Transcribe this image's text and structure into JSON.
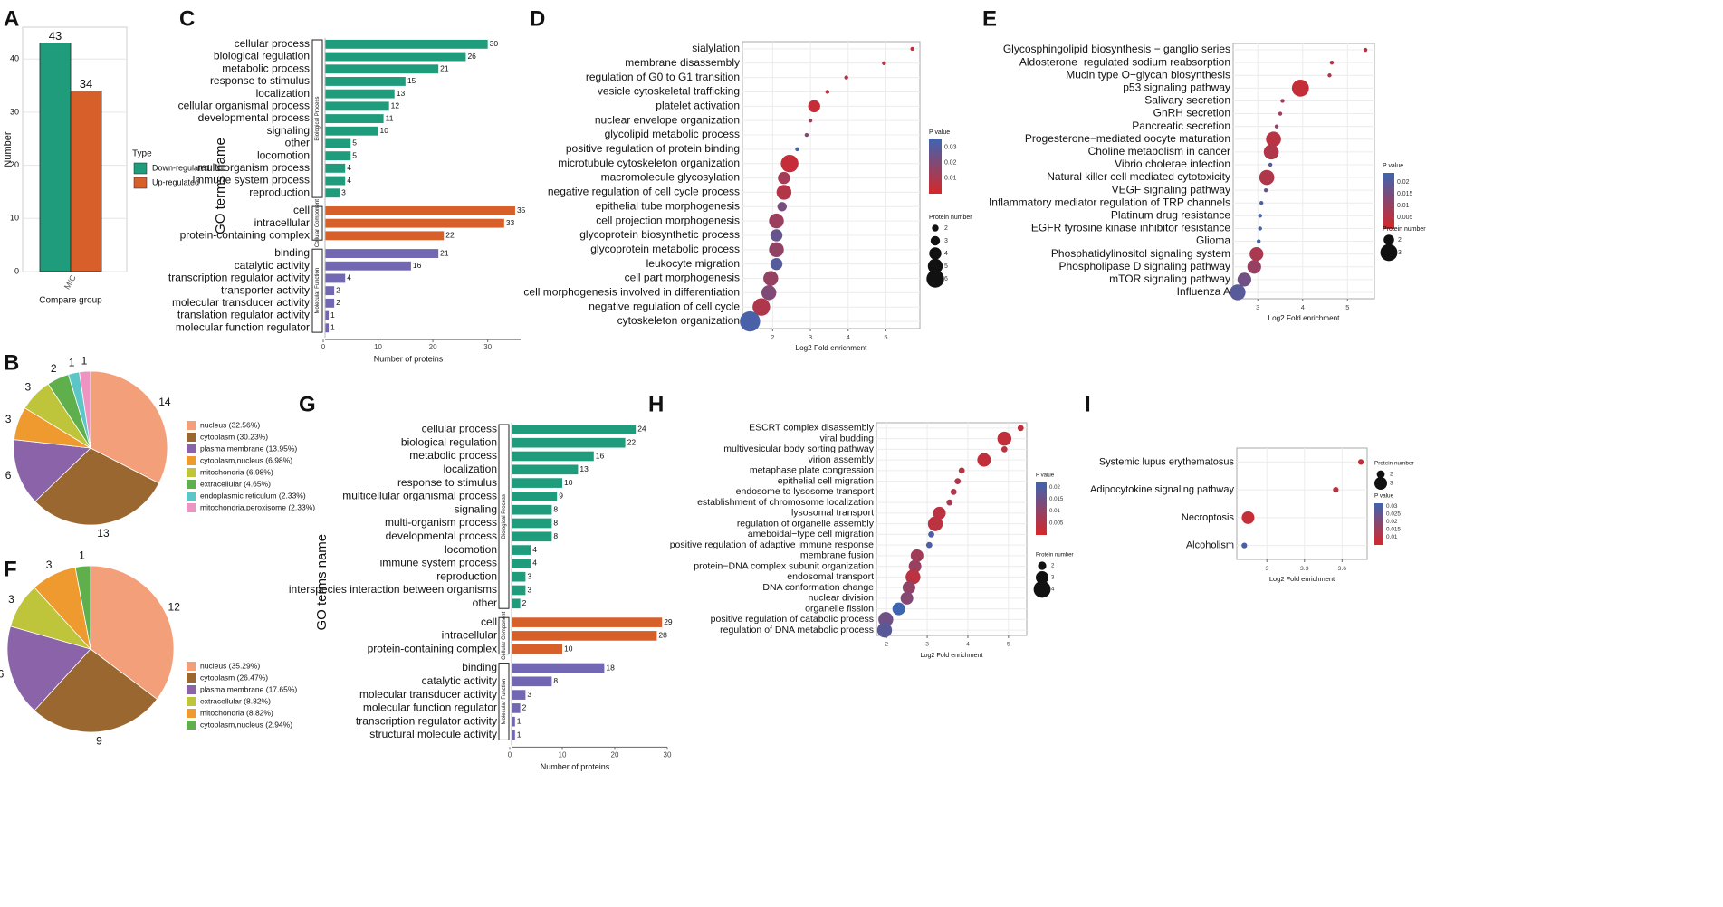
{
  "colors": {
    "green": "#1E9C7C",
    "orange": "#D7602A",
    "purple": "#7167B3",
    "p_high": "#D62728",
    "p_low": "#3F64B0"
  },
  "chart_data": [
    {
      "id": "A",
      "type": "bar",
      "title": "",
      "xlabel": "Compare group",
      "ylabel": "Number",
      "categories": [
        "M/C"
      ],
      "series": [
        {
          "name": "Down-regulated",
          "values": [
            43
          ],
          "color": "#1E9C7C"
        },
        {
          "name": "Up-regulated",
          "values": [
            34
          ],
          "color": "#D7602A"
        }
      ],
      "ylim": [
        0,
        46
      ],
      "yticks": [
        0,
        10,
        20,
        30,
        40
      ],
      "legend_title": "Type",
      "legend_position": "right"
    },
    {
      "id": "B",
      "type": "pie",
      "slices": [
        {
          "label": "nucleus (32.56%)",
          "value": 14,
          "color": "#F3A07A"
        },
        {
          "label": "cytoplasm (30.23%)",
          "value": 13,
          "color": "#99672F"
        },
        {
          "label": "plasma membrane (13.95%)",
          "value": 6,
          "color": "#8B63A8"
        },
        {
          "label": "cytoplasm,nucleus (6.98%)",
          "value": 3,
          "color": "#EE9A2E"
        },
        {
          "label": "mitochondria (6.98%)",
          "value": 3,
          "color": "#BFC53B"
        },
        {
          "label": "extracellular (4.65%)",
          "value": 2,
          "color": "#5FB04D"
        },
        {
          "label": "endoplasmic reticulum (2.33%)",
          "value": 1,
          "color": "#5CC5C8"
        },
        {
          "label": "mitochondria,peroxisome (2.33%)",
          "value": 1,
          "color": "#EE94C2"
        }
      ]
    },
    {
      "id": "F",
      "type": "pie",
      "slices": [
        {
          "label": "nucleus (35.29%)",
          "value": 12,
          "color": "#F3A07A"
        },
        {
          "label": "cytoplasm (26.47%)",
          "value": 9,
          "color": "#99672F"
        },
        {
          "label": "plasma membrane (17.65%)",
          "value": 6,
          "color": "#8B63A8"
        },
        {
          "label": "extracellular (8.82%)",
          "value": 3,
          "color": "#BFC53B"
        },
        {
          "label": "mitochondria (8.82%)",
          "value": 3,
          "color": "#EE9A2E"
        },
        {
          "label": "cytoplasm,nucleus (2.94%)",
          "value": 1,
          "color": "#5FB04D"
        }
      ]
    },
    {
      "id": "C",
      "type": "bar",
      "orientation": "horizontal",
      "xlabel": "Number of proteins",
      "ylabel": "GO terms name",
      "xlim": [
        0,
        36
      ],
      "xticks": [
        0,
        10,
        20,
        30
      ],
      "groups": [
        {
          "name": "Biological Process",
          "color": "#1E9C7C",
          "terms": [
            {
              "label": "cellular process",
              "value": 30
            },
            {
              "label": "biological regulation",
              "value": 26
            },
            {
              "label": "metabolic process",
              "value": 21
            },
            {
              "label": "response to stimulus",
              "value": 15
            },
            {
              "label": "localization",
              "value": 13
            },
            {
              "label": "cellular organismal process",
              "value": 12
            },
            {
              "label": "developmental process",
              "value": 11
            },
            {
              "label": "signaling",
              "value": 10
            },
            {
              "label": "other",
              "value": 5
            },
            {
              "label": "locomotion",
              "value": 5
            },
            {
              "label": "multi-organism process",
              "value": 4
            },
            {
              "label": "immune system process",
              "value": 4
            },
            {
              "label": "reproduction",
              "value": 3
            }
          ]
        },
        {
          "name": "Cellular Component",
          "color": "#D7602A",
          "terms": [
            {
              "label": "cell",
              "value": 35
            },
            {
              "label": "intracellular",
              "value": 33
            },
            {
              "label": "protein-containing complex",
              "value": 22
            }
          ]
        },
        {
          "name": "Molecular Function",
          "color": "#7167B3",
          "terms": [
            {
              "label": "binding",
              "value": 21
            },
            {
              "label": "catalytic activity",
              "value": 16
            },
            {
              "label": "transcription regulator activity",
              "value": 4
            },
            {
              "label": "transporter activity",
              "value": 2
            },
            {
              "label": "molecular transducer activity",
              "value": 2
            },
            {
              "label": "translation regulator activity",
              "value": 1
            },
            {
              "label": "molecular function regulator",
              "value": 1
            }
          ]
        }
      ]
    },
    {
      "id": "G",
      "type": "bar",
      "orientation": "horizontal",
      "xlabel": "Number of proteins",
      "ylabel": "GO terms name",
      "xlim": [
        0,
        30
      ],
      "xticks": [
        0,
        10,
        20,
        30
      ],
      "groups": [
        {
          "name": "Biological Process",
          "color": "#1E9C7C",
          "terms": [
            {
              "label": "cellular process",
              "value": 24
            },
            {
              "label": "biological regulation",
              "value": 22
            },
            {
              "label": "metabolic process",
              "value": 16
            },
            {
              "label": "localization",
              "value": 13
            },
            {
              "label": "response to stimulus",
              "value": 10
            },
            {
              "label": "multicellular organismal process",
              "value": 9
            },
            {
              "label": "signaling",
              "value": 8
            },
            {
              "label": "multi-organism process",
              "value": 8
            },
            {
              "label": "developmental process",
              "value": 8
            },
            {
              "label": "locomotion",
              "value": 4
            },
            {
              "label": "immune system process",
              "value": 4
            },
            {
              "label": "reproduction",
              "value": 3
            },
            {
              "label": "interspecies interaction between organisms",
              "value": 3
            },
            {
              "label": "other",
              "value": 2
            }
          ]
        },
        {
          "name": "Cellular Component",
          "color": "#D7602A",
          "terms": [
            {
              "label": "cell",
              "value": 29
            },
            {
              "label": "intracellular",
              "value": 28
            },
            {
              "label": "protein-containing complex",
              "value": 10
            }
          ]
        },
        {
          "name": "Molecular Function",
          "color": "#7167B3",
          "terms": [
            {
              "label": "binding",
              "value": 18
            },
            {
              "label": "catalytic activity",
              "value": 8
            },
            {
              "label": "molecular transducer activity",
              "value": 3
            },
            {
              "label": "molecular function regulator",
              "value": 2
            },
            {
              "label": "transcription regulator activity",
              "value": 1
            },
            {
              "label": "structural molecule activity",
              "value": 1
            }
          ]
        }
      ]
    },
    {
      "id": "D",
      "type": "scatter",
      "subtype": "bubble",
      "xlabel": "Log2 Fold enrichment",
      "xlim": [
        1.2,
        5.9
      ],
      "xticks": [
        2,
        3,
        4,
        5
      ],
      "color_legend": {
        "title": "P value",
        "min": 0.0,
        "max": 0.035,
        "ticks": [
          0.01,
          0.02,
          0.03
        ]
      },
      "size_legend": {
        "title": "Protein number",
        "values": [
          2,
          3,
          4,
          5,
          6
        ]
      },
      "points": [
        {
          "term": "sialylation",
          "x": 5.7,
          "p": 0.005,
          "n": 1
        },
        {
          "term": "membrane disassembly",
          "x": 4.95,
          "p": 0.006,
          "n": 1
        },
        {
          "term": "regulation of G0 to G1 transition",
          "x": 3.95,
          "p": 0.008,
          "n": 1
        },
        {
          "term": "vesicle cytoskeletal trafficking",
          "x": 3.45,
          "p": 0.008,
          "n": 1
        },
        {
          "term": "platelet activation",
          "x": 3.1,
          "p": 0.004,
          "n": 4
        },
        {
          "term": "nuclear envelope organization",
          "x": 3.0,
          "p": 0.015,
          "n": 1
        },
        {
          "term": "glycolipid metabolic process",
          "x": 2.9,
          "p": 0.02,
          "n": 1
        },
        {
          "term": "positive regulation of protein binding",
          "x": 2.65,
          "p": 0.034,
          "n": 1
        },
        {
          "term": "microtubule cytoskeleton organization",
          "x": 2.45,
          "p": 0.004,
          "n": 6
        },
        {
          "term": "macromolecule glycosylation",
          "x": 2.3,
          "p": 0.012,
          "n": 4
        },
        {
          "term": "negative regulation of cell cycle process",
          "x": 2.3,
          "p": 0.008,
          "n": 5
        },
        {
          "term": "epithelial tube morphogenesis",
          "x": 2.25,
          "p": 0.022,
          "n": 3
        },
        {
          "term": "cell projection morphogenesis",
          "x": 2.1,
          "p": 0.014,
          "n": 5
        },
        {
          "term": "glycoprotein biosynthetic process",
          "x": 2.1,
          "p": 0.026,
          "n": 4
        },
        {
          "term": "glycoprotein metabolic process",
          "x": 2.1,
          "p": 0.016,
          "n": 5
        },
        {
          "term": "leukocyte migration",
          "x": 2.1,
          "p": 0.03,
          "n": 4
        },
        {
          "term": "cell part morphogenesis",
          "x": 1.95,
          "p": 0.015,
          "n": 5
        },
        {
          "term": "cell morphogenesis involved in differentiation",
          "x": 1.9,
          "p": 0.02,
          "n": 5
        },
        {
          "term": "negative regulation of cell cycle",
          "x": 1.7,
          "p": 0.009,
          "n": 6
        },
        {
          "term": "cytoskeleton organization",
          "x": 1.4,
          "p": 0.033,
          "n": 7
        }
      ]
    },
    {
      "id": "E",
      "type": "scatter",
      "subtype": "bubble",
      "xlabel": "Log2 Fold enrichment",
      "xlim": [
        2.45,
        5.6
      ],
      "xticks": [
        3,
        4,
        5
      ],
      "color_legend": {
        "title": "P value",
        "min": 0.0,
        "max": 0.024,
        "ticks": [
          0.005,
          0.01,
          0.015,
          0.02
        ]
      },
      "size_legend": {
        "title": "Protein number",
        "values": [
          2,
          3
        ]
      },
      "points": [
        {
          "term": "Glycosphingolipid biosynthesis − ganglio series",
          "x": 5.4,
          "p": 0.004,
          "n": 1
        },
        {
          "term": "Aldosterone−regulated sodium reabsorption",
          "x": 4.65,
          "p": 0.005,
          "n": 1
        },
        {
          "term": "Mucin type O−glycan biosynthesis",
          "x": 4.6,
          "p": 0.006,
          "n": 1
        },
        {
          "term": "p53 signaling pathway",
          "x": 3.95,
          "p": 0.003,
          "n": 3
        },
        {
          "term": "Salivary secretion",
          "x": 3.55,
          "p": 0.008,
          "n": 1
        },
        {
          "term": "GnRH secretion",
          "x": 3.5,
          "p": 0.009,
          "n": 1
        },
        {
          "term": "Pancreatic secretion",
          "x": 3.42,
          "p": 0.012,
          "n": 1
        },
        {
          "term": "Progesterone−mediated oocyte maturation",
          "x": 3.35,
          "p": 0.005,
          "n": 2.7
        },
        {
          "term": "Choline metabolism in cancer",
          "x": 3.3,
          "p": 0.006,
          "n": 2.7
        },
        {
          "term": "Vibrio cholerae infection",
          "x": 3.28,
          "p": 0.021,
          "n": 1
        },
        {
          "term": "Natural killer cell mediated cytotoxicity",
          "x": 3.2,
          "p": 0.006,
          "n": 2.7
        },
        {
          "term": "VEGF signaling pathway",
          "x": 3.18,
          "p": 0.018,
          "n": 1
        },
        {
          "term": "Inflammatory mediator regulation of TRP channels",
          "x": 3.08,
          "p": 0.022,
          "n": 1
        },
        {
          "term": "Platinum drug resistance",
          "x": 3.05,
          "p": 0.023,
          "n": 1
        },
        {
          "term": "EGFR tyrosine kinase inhibitor resistance",
          "x": 3.05,
          "p": 0.023,
          "n": 1
        },
        {
          "term": "Glioma",
          "x": 3.02,
          "p": 0.024,
          "n": 1
        },
        {
          "term": "Phosphatidylinositol signaling system",
          "x": 2.97,
          "p": 0.007,
          "n": 2.5
        },
        {
          "term": "Phospholipase D signaling pathway",
          "x": 2.92,
          "p": 0.01,
          "n": 2.5
        },
        {
          "term": "mTOR signaling pathway",
          "x": 2.7,
          "p": 0.016,
          "n": 2.5
        },
        {
          "term": "Influenza A",
          "x": 2.55,
          "p": 0.02,
          "n": 2.8
        }
      ]
    },
    {
      "id": "H",
      "type": "scatter",
      "subtype": "bubble",
      "xlabel": "Log2 Fold enrichment",
      "xlim": [
        1.75,
        5.45
      ],
      "xticks": [
        2,
        3,
        4,
        5
      ],
      "color_legend": {
        "title": "P value",
        "min": 0.0,
        "max": 0.022,
        "ticks": [
          0.005,
          0.01,
          0.015,
          0.02
        ]
      },
      "size_legend": {
        "title": "Protein number",
        "values": [
          2,
          3,
          4
        ]
      },
      "points": [
        {
          "term": "ESCRT complex disassembly",
          "x": 5.3,
          "p": 0.003,
          "n": 1.5
        },
        {
          "term": "viral budding",
          "x": 4.9,
          "p": 0.003,
          "n": 3.3
        },
        {
          "term": "multivesicular body sorting pathway",
          "x": 4.9,
          "p": 0.004,
          "n": 1.5
        },
        {
          "term": "virion assembly",
          "x": 4.4,
          "p": 0.003,
          "n": 3.2
        },
        {
          "term": "metaphase plate congression",
          "x": 3.85,
          "p": 0.005,
          "n": 1.5
        },
        {
          "term": "epithelial cell migration",
          "x": 3.75,
          "p": 0.006,
          "n": 1.5
        },
        {
          "term": "endosome to lysosome transport",
          "x": 3.65,
          "p": 0.006,
          "n": 1.5
        },
        {
          "term": "establishment of chromosome localization",
          "x": 3.55,
          "p": 0.007,
          "n": 1.5
        },
        {
          "term": "lysosomal transport",
          "x": 3.3,
          "p": 0.004,
          "n": 3
        },
        {
          "term": "regulation of organelle assembly",
          "x": 3.2,
          "p": 0.004,
          "n": 3.5
        },
        {
          "term": "ameboidal−type cell migration",
          "x": 3.1,
          "p": 0.02,
          "n": 1.5
        },
        {
          "term": "positive regulation of adaptive immune response",
          "x": 3.05,
          "p": 0.02,
          "n": 1.5
        },
        {
          "term": "membrane fusion",
          "x": 2.75,
          "p": 0.008,
          "n": 3
        },
        {
          "term": "protein−DNA complex subunit organization",
          "x": 2.7,
          "p": 0.009,
          "n": 3
        },
        {
          "term": "endosomal transport",
          "x": 2.65,
          "p": 0.004,
          "n": 3.5
        },
        {
          "term": "DNA conformation change",
          "x": 2.55,
          "p": 0.01,
          "n": 3
        },
        {
          "term": "nuclear division",
          "x": 2.5,
          "p": 0.012,
          "n": 3
        },
        {
          "term": "organelle fission",
          "x": 2.3,
          "p": 0.022,
          "n": 3
        },
        {
          "term": "positive regulation of catabolic process",
          "x": 1.98,
          "p": 0.015,
          "n": 3.5
        },
        {
          "term": "regulation of DNA metabolic process",
          "x": 1.95,
          "p": 0.018,
          "n": 3.5
        }
      ]
    },
    {
      "id": "I",
      "type": "scatter",
      "subtype": "bubble",
      "xlabel": "Log2 Fold enrichment",
      "xlim": [
        2.76,
        3.8
      ],
      "xticks": [
        3.0,
        3.3,
        3.6
      ],
      "color_legend": {
        "title": "P value",
        "min": 0.005,
        "max": 0.032,
        "ticks": [
          0.01,
          0.015,
          0.02,
          0.025,
          0.03
        ]
      },
      "size_legend": {
        "title": "Protein number",
        "values": [
          2,
          3
        ]
      },
      "points": [
        {
          "term": "Systemic lupus erythematosus",
          "x": 3.75,
          "p": 0.008,
          "n": 1.5
        },
        {
          "term": "Adipocytokine signaling pathway",
          "x": 3.55,
          "p": 0.01,
          "n": 1.5
        },
        {
          "term": "Necroptosis",
          "x": 2.85,
          "p": 0.008,
          "n": 3
        },
        {
          "term": "Alcoholism",
          "x": 2.82,
          "p": 0.03,
          "n": 1.5
        }
      ]
    }
  ]
}
